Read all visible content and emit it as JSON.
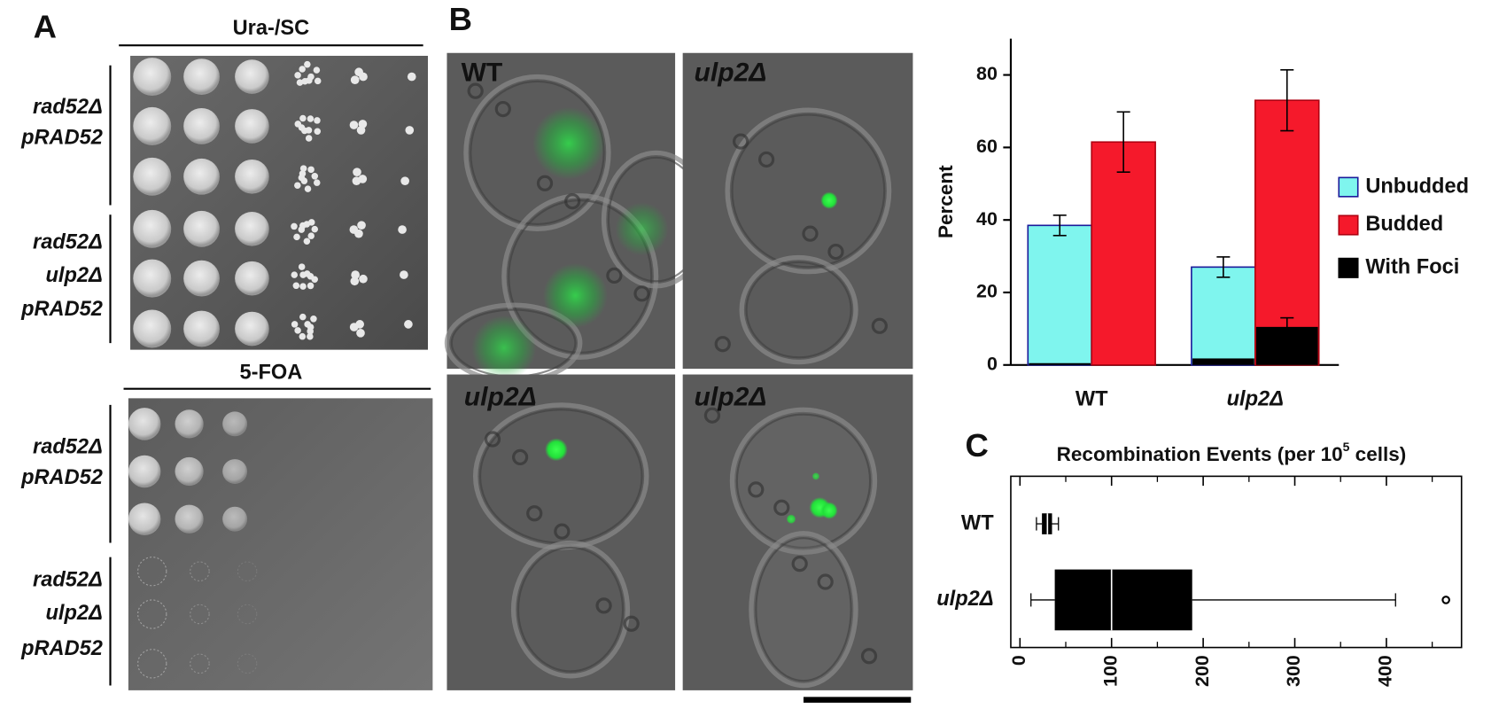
{
  "figure": {
    "panel_labels": [
      "A",
      "B",
      "C"
    ],
    "plates": [
      {
        "title": "Ura-/SC",
        "strains": [
          [
            "rad52Δ",
            "pRAD52"
          ],
          [
            "rad52Δ",
            "ulp2Δ",
            "pRAD52"
          ]
        ]
      },
      {
        "title": "5-FOA",
        "strains": [
          [
            "rad52Δ",
            "pRAD52"
          ],
          [
            "rad52Δ",
            "ulp2Δ",
            "pRAD52"
          ]
        ]
      }
    ],
    "micrographs": [
      "WT",
      "ulp2Δ",
      "ulp2Δ",
      "ulp2Δ"
    ]
  },
  "chart_data": [
    {
      "type": "bar",
      "categories": [
        "WT",
        "ulp2Δ"
      ],
      "ylabel": "Percent",
      "ylim": [
        0,
        90
      ],
      "yticks": [
        0,
        20,
        40,
        60,
        80
      ],
      "legend": "right",
      "series": [
        {
          "name": "Unbudded",
          "color": "#7ff5ee",
          "edge": "#1a1a9a",
          "values": [
            38.5,
            27
          ],
          "errors": [
            2.8,
            2.8
          ]
        },
        {
          "name": "Budded",
          "color": "#f5192b",
          "edge": "#b00010",
          "values": [
            61.5,
            73
          ],
          "errors": [
            8.3,
            8.4
          ]
        },
        {
          "name": "With Foci",
          "color": "#000000",
          "values_unbudded": [
            0.5,
            1.8
          ],
          "values_budded": [
            0,
            10.5
          ],
          "errors_budded": [
            null,
            2.5
          ]
        }
      ]
    },
    {
      "type": "box",
      "title": [
        "Recombination Events (per 10",
        "5",
        " cells)"
      ],
      "categories": [
        "WT",
        "ulp2Δ"
      ],
      "color": "#000000",
      "xlim": [
        -10,
        482
      ],
      "xticks": [
        0,
        100,
        200,
        300,
        400
      ],
      "xminor": [
        50,
        150,
        250,
        350,
        450
      ],
      "boxes": [
        {
          "whislo": 18,
          "q1": 24,
          "med": 30,
          "q3": 35,
          "whishi": 42
        },
        {
          "whislo": 12,
          "q1": 38,
          "med": 100,
          "q3": 188,
          "whishi": 410,
          "outliers": [
            465
          ]
        }
      ]
    }
  ]
}
